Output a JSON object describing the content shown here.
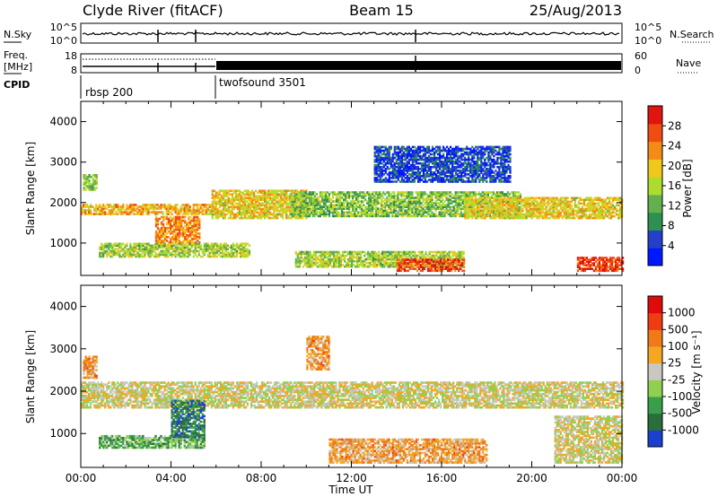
{
  "header": {
    "station": "Clyde River (fitACF)",
    "beam": "Beam 15",
    "date": "25/Aug/2013"
  },
  "panels": {
    "nsky": {
      "label": "N.Sky",
      "right_label": "N.Search",
      "left_ticks": [
        "10^5",
        "10^0"
      ],
      "right_ticks": [
        "10^5",
        "10^0"
      ]
    },
    "freq": {
      "label_line1": "Freq.",
      "label_line2": "[MHz]",
      "right_label": "Nave",
      "left_ticks": [
        "18",
        "8"
      ],
      "right_ticks": [
        "60",
        "0"
      ]
    },
    "cpid": {
      "label": "CPID",
      "programs": [
        {
          "name": "rbsp 200",
          "start_hour": 0.0
        },
        {
          "name": "twofsound 3501",
          "start_hour": 6.0
        }
      ]
    }
  },
  "chart_data": [
    {
      "type": "heatmap",
      "quantity": "power",
      "ylabel": "Slant Range [km]",
      "xlabel": "",
      "xlim": [
        0,
        24
      ],
      "ylim": [
        200,
        4500
      ],
      "yticks": [
        1000,
        2000,
        3000,
        4000
      ],
      "colorbar": {
        "label": "Power [dB]",
        "ticks": [
          "28",
          "24",
          "20",
          "16",
          "12",
          "8",
          "4"
        ],
        "colors": [
          "#0018ff",
          "#2540c8",
          "#2e8f52",
          "#63b04e",
          "#aedc2e",
          "#f0c81c",
          "#f58a18",
          "#f04d12",
          "#e01410"
        ]
      },
      "bands": [
        {
          "t0": 0.0,
          "t1": 5.8,
          "r0": 1700,
          "r1": 1950,
          "level": 0.68
        },
        {
          "t0": 3.3,
          "t1": 5.3,
          "r0": 950,
          "r1": 1650,
          "level": 0.75
        },
        {
          "t0": 5.8,
          "t1": 10.0,
          "r0": 1600,
          "r1": 2300,
          "level": 0.6
        },
        {
          "t0": 9.3,
          "t1": 19.5,
          "r0": 1650,
          "r1": 2250,
          "level": 0.42
        },
        {
          "t0": 17.0,
          "t1": 24.0,
          "r0": 1600,
          "r1": 2100,
          "level": 0.6
        },
        {
          "t0": 0.8,
          "t1": 7.5,
          "r0": 650,
          "r1": 1000,
          "level": 0.48
        },
        {
          "t0": 9.5,
          "t1": 17.0,
          "r0": 400,
          "r1": 800,
          "level": 0.48
        },
        {
          "t0": 14.0,
          "t1": 17.0,
          "r0": 300,
          "r1": 600,
          "level": 0.88
        },
        {
          "t0": 22.0,
          "t1": 24.0,
          "r0": 300,
          "r1": 650,
          "level": 0.92
        },
        {
          "t0": 13.0,
          "t1": 19.0,
          "r0": 2500,
          "r1": 3400,
          "level": 0.1
        },
        {
          "t0": 0.1,
          "t1": 0.7,
          "r0": 2300,
          "r1": 2700,
          "level": 0.45
        }
      ]
    },
    {
      "type": "heatmap",
      "quantity": "velocity",
      "ylabel": "Slant Range [km]",
      "xlabel": "Time UT",
      "xlim": [
        0,
        24
      ],
      "ylim": [
        200,
        4500
      ],
      "yticks": [
        1000,
        2000,
        3000,
        4000
      ],
      "xticks": [
        "00:00",
        "04:00",
        "08:00",
        "12:00",
        "16:00",
        "20:00",
        "00:00"
      ],
      "colorbar": {
        "label": "Velocity [m s⁻¹]",
        "ticks": [
          "1000",
          "500",
          "100",
          "25",
          "-25",
          "-100",
          "-500",
          "-1000"
        ],
        "colors": [
          "#1b3fcf",
          "#2a6e3b",
          "#3a9e4a",
          "#8fd14f",
          "#c8c8c0",
          "#f5a623",
          "#f07a18",
          "#f03c12",
          "#e00a0a"
        ]
      },
      "bands": [
        {
          "t0": 0.0,
          "t1": 24.0,
          "r0": 1600,
          "r1": 2200,
          "level": 0.5
        },
        {
          "t0": 0.8,
          "t1": 5.5,
          "r0": 650,
          "r1": 950,
          "level": 0.3
        },
        {
          "t0": 4.0,
          "t1": 5.5,
          "r0": 900,
          "r1": 1800,
          "level": 0.15
        },
        {
          "t0": 11.0,
          "t1": 18.0,
          "r0": 300,
          "r1": 850,
          "level": 0.65
        },
        {
          "t0": 21.0,
          "t1": 24.0,
          "r0": 300,
          "r1": 1400,
          "level": 0.5
        },
        {
          "t0": 0.1,
          "t1": 0.7,
          "r0": 2300,
          "r1": 2800,
          "level": 0.68
        },
        {
          "t0": 10.0,
          "t1": 11.0,
          "r0": 2500,
          "r1": 3300,
          "level": 0.68
        }
      ]
    }
  ]
}
